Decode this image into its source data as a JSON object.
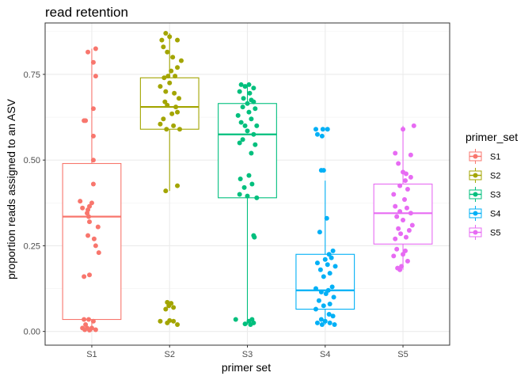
{
  "chart_data": {
    "type": "boxplot",
    "title": "read retention",
    "xlabel": "primer set",
    "ylabel": "proportion reads assigned to an ASV",
    "categories": [
      "S1",
      "S2",
      "S3",
      "S4",
      "S5"
    ],
    "ylim": [
      -0.04,
      0.9
    ],
    "yticks": [
      0.0,
      0.25,
      0.5,
      0.75
    ],
    "ytick_labels": [
      "0.00",
      "0.25",
      "0.50",
      "0.75"
    ],
    "grid": true,
    "legend": {
      "title": "primer_set",
      "position": "right",
      "entries": [
        "S1",
        "S2",
        "S3",
        "S4",
        "S5"
      ]
    },
    "colors": {
      "S1": "#f8766d",
      "S2": "#a3a500",
      "S3": "#00bf7d",
      "S4": "#00b0f6",
      "S5": "#e76bf3"
    },
    "boxes": [
      {
        "name": "S1",
        "q1": 0.035,
        "median": 0.335,
        "q3": 0.49,
        "whisker_low": 0.0,
        "whisker_high": 0.825
      },
      {
        "name": "S2",
        "q1": 0.59,
        "median": 0.655,
        "q3": 0.74,
        "whisker_low": 0.41,
        "whisker_high": 0.87
      },
      {
        "name": "S3",
        "q1": 0.39,
        "median": 0.575,
        "q3": 0.665,
        "whisker_low": 0.02,
        "whisker_high": 0.72
      },
      {
        "name": "S4",
        "q1": 0.065,
        "median": 0.12,
        "q3": 0.225,
        "whisker_low": 0.02,
        "whisker_high": 0.44
      },
      {
        "name": "S5",
        "q1": 0.255,
        "median": 0.345,
        "q3": 0.43,
        "whisker_low": 0.18,
        "whisker_high": 0.6
      }
    ],
    "points": [
      {
        "name": "S1",
        "values": [
          {
            "offset": 0.05,
            "y": 0.825
          },
          {
            "offset": -0.05,
            "y": 0.815
          },
          {
            "offset": 0.02,
            "y": 0.785
          },
          {
            "offset": 0.05,
            "y": 0.745
          },
          {
            "offset": 0.02,
            "y": 0.65
          },
          {
            "offset": -0.1,
            "y": 0.615
          },
          {
            "offset": -0.08,
            "y": 0.615
          },
          {
            "offset": 0.02,
            "y": 0.57
          },
          {
            "offset": 0.02,
            "y": 0.5
          },
          {
            "offset": 0.02,
            "y": 0.43
          },
          {
            "offset": -0.15,
            "y": 0.38
          },
          {
            "offset": 0.0,
            "y": 0.375
          },
          {
            "offset": -0.12,
            "y": 0.36
          },
          {
            "offset": -0.05,
            "y": 0.355
          },
          {
            "offset": -0.03,
            "y": 0.365
          },
          {
            "offset": -0.06,
            "y": 0.345
          },
          {
            "offset": -0.04,
            "y": 0.335
          },
          {
            "offset": -0.03,
            "y": 0.32
          },
          {
            "offset": 0.08,
            "y": 0.305
          },
          {
            "offset": -0.05,
            "y": 0.28
          },
          {
            "offset": 0.03,
            "y": 0.27
          },
          {
            "offset": 0.05,
            "y": 0.25
          },
          {
            "offset": 0.09,
            "y": 0.23
          },
          {
            "offset": -0.03,
            "y": 0.165
          },
          {
            "offset": -0.1,
            "y": 0.16
          },
          {
            "offset": -0.1,
            "y": 0.035
          },
          {
            "offset": -0.04,
            "y": 0.035
          },
          {
            "offset": 0.02,
            "y": 0.03
          },
          {
            "offset": -0.08,
            "y": 0.02
          },
          {
            "offset": -0.12,
            "y": 0.01
          },
          {
            "offset": -0.06,
            "y": 0.01
          },
          {
            "offset": 0.0,
            "y": 0.01
          },
          {
            "offset": 0.05,
            "y": 0.005
          },
          {
            "offset": -0.09,
            "y": 0.005
          },
          {
            "offset": -0.03,
            "y": 0.004
          }
        ]
      },
      {
        "name": "S2",
        "values": [
          {
            "offset": -0.05,
            "y": 0.87
          },
          {
            "offset": 0.0,
            "y": 0.86
          },
          {
            "offset": -0.1,
            "y": 0.85
          },
          {
            "offset": 0.1,
            "y": 0.85
          },
          {
            "offset": -0.08,
            "y": 0.83
          },
          {
            "offset": -0.03,
            "y": 0.815
          },
          {
            "offset": 0.04,
            "y": 0.8
          },
          {
            "offset": 0.15,
            "y": 0.79
          },
          {
            "offset": 0.1,
            "y": 0.77
          },
          {
            "offset": 0.02,
            "y": 0.76
          },
          {
            "offset": -0.02,
            "y": 0.745
          },
          {
            "offset": 0.07,
            "y": 0.745
          },
          {
            "offset": -0.07,
            "y": 0.74
          },
          {
            "offset": 0.0,
            "y": 0.725
          },
          {
            "offset": -0.12,
            "y": 0.715
          },
          {
            "offset": -0.05,
            "y": 0.7
          },
          {
            "offset": 0.06,
            "y": 0.695
          },
          {
            "offset": 0.12,
            "y": 0.68
          },
          {
            "offset": -0.06,
            "y": 0.67
          },
          {
            "offset": -0.03,
            "y": 0.66
          },
          {
            "offset": 0.08,
            "y": 0.655
          },
          {
            "offset": 0.1,
            "y": 0.64
          },
          {
            "offset": 0.03,
            "y": 0.635
          },
          {
            "offset": -0.08,
            "y": 0.62
          },
          {
            "offset": 0.05,
            "y": 0.6
          },
          {
            "offset": -0.12,
            "y": 0.605
          },
          {
            "offset": 0.13,
            "y": 0.59
          },
          {
            "offset": -0.04,
            "y": 0.59
          },
          {
            "offset": 0.1,
            "y": 0.425
          },
          {
            "offset": -0.05,
            "y": 0.41
          },
          {
            "offset": -0.03,
            "y": 0.085
          },
          {
            "offset": 0.02,
            "y": 0.082
          },
          {
            "offset": -0.01,
            "y": 0.075
          },
          {
            "offset": 0.05,
            "y": 0.07
          },
          {
            "offset": -0.05,
            "y": 0.065
          },
          {
            "offset": 0.0,
            "y": 0.032
          },
          {
            "offset": -0.12,
            "y": 0.03
          },
          {
            "offset": 0.05,
            "y": 0.03
          },
          {
            "offset": -0.03,
            "y": 0.025
          },
          {
            "offset": 0.1,
            "y": 0.02
          }
        ]
      },
      {
        "name": "S3",
        "values": [
          {
            "offset": -0.08,
            "y": 0.72
          },
          {
            "offset": -0.03,
            "y": 0.715
          },
          {
            "offset": 0.02,
            "y": 0.72
          },
          {
            "offset": 0.08,
            "y": 0.71
          },
          {
            "offset": -0.1,
            "y": 0.7
          },
          {
            "offset": 0.03,
            "y": 0.695
          },
          {
            "offset": -0.05,
            "y": 0.68
          },
          {
            "offset": 0.05,
            "y": 0.675
          },
          {
            "offset": 0.0,
            "y": 0.665
          },
          {
            "offset": 0.08,
            "y": 0.67
          },
          {
            "offset": -0.06,
            "y": 0.655
          },
          {
            "offset": 0.1,
            "y": 0.65
          },
          {
            "offset": 0.02,
            "y": 0.64
          },
          {
            "offset": -0.12,
            "y": 0.63
          },
          {
            "offset": 0.05,
            "y": 0.62
          },
          {
            "offset": -0.08,
            "y": 0.61
          },
          {
            "offset": 0.12,
            "y": 0.6
          },
          {
            "offset": -0.03,
            "y": 0.6
          },
          {
            "offset": 0.0,
            "y": 0.585
          },
          {
            "offset": 0.08,
            "y": 0.575
          },
          {
            "offset": -0.06,
            "y": 0.56
          },
          {
            "offset": 0.1,
            "y": 0.545
          },
          {
            "offset": -0.1,
            "y": 0.55
          },
          {
            "offset": 0.05,
            "y": 0.52
          },
          {
            "offset": 0.02,
            "y": 0.455
          },
          {
            "offset": -0.09,
            "y": 0.445
          },
          {
            "offset": 0.06,
            "y": 0.43
          },
          {
            "offset": -0.04,
            "y": 0.42
          },
          {
            "offset": -0.1,
            "y": 0.4
          },
          {
            "offset": 0.0,
            "y": 0.395
          },
          {
            "offset": 0.12,
            "y": 0.39
          },
          {
            "offset": 0.08,
            "y": 0.28
          },
          {
            "offset": 0.09,
            "y": 0.275
          },
          {
            "offset": -0.15,
            "y": 0.035
          },
          {
            "offset": 0.06,
            "y": 0.035
          },
          {
            "offset": 0.02,
            "y": 0.03
          },
          {
            "offset": 0.08,
            "y": 0.025
          },
          {
            "offset": -0.03,
            "y": 0.022
          },
          {
            "offset": 0.04,
            "y": 0.02
          }
        ]
      },
      {
        "name": "S4",
        "values": [
          {
            "offset": -0.12,
            "y": 0.59
          },
          {
            "offset": -0.03,
            "y": 0.59
          },
          {
            "offset": -0.1,
            "y": 0.575
          },
          {
            "offset": -0.04,
            "y": 0.57
          },
          {
            "offset": 0.03,
            "y": 0.59
          },
          {
            "offset": -0.05,
            "y": 0.47
          },
          {
            "offset": -0.02,
            "y": 0.47
          },
          {
            "offset": 0.02,
            "y": 0.33
          },
          {
            "offset": -0.07,
            "y": 0.29
          },
          {
            "offset": 0.1,
            "y": 0.235
          },
          {
            "offset": 0.05,
            "y": 0.225
          },
          {
            "offset": 0.08,
            "y": 0.215
          },
          {
            "offset": 0.0,
            "y": 0.21
          },
          {
            "offset": -0.1,
            "y": 0.2
          },
          {
            "offset": 0.03,
            "y": 0.195
          },
          {
            "offset": 0.13,
            "y": 0.19
          },
          {
            "offset": -0.06,
            "y": 0.18
          },
          {
            "offset": 0.06,
            "y": 0.17
          },
          {
            "offset": -0.02,
            "y": 0.16
          },
          {
            "offset": 0.09,
            "y": 0.13
          },
          {
            "offset": -0.12,
            "y": 0.125
          },
          {
            "offset": 0.04,
            "y": 0.12
          },
          {
            "offset": -0.05,
            "y": 0.115
          },
          {
            "offset": 0.01,
            "y": 0.11
          },
          {
            "offset": 0.11,
            "y": 0.1
          },
          {
            "offset": -0.08,
            "y": 0.09
          },
          {
            "offset": 0.06,
            "y": 0.08
          },
          {
            "offset": -0.02,
            "y": 0.075
          },
          {
            "offset": -0.12,
            "y": 0.065
          },
          {
            "offset": 0.05,
            "y": 0.05
          },
          {
            "offset": 0.1,
            "y": 0.045
          },
          {
            "offset": -0.05,
            "y": 0.035
          },
          {
            "offset": 0.0,
            "y": 0.03
          },
          {
            "offset": -0.1,
            "y": 0.025
          },
          {
            "offset": 0.06,
            "y": 0.025
          },
          {
            "offset": -0.04,
            "y": 0.02
          },
          {
            "offset": 0.12,
            "y": 0.02
          }
        ]
      },
      {
        "name": "S5",
        "values": [
          {
            "offset": 0.14,
            "y": 0.6
          },
          {
            "offset": 0.0,
            "y": 0.59
          },
          {
            "offset": -0.1,
            "y": 0.52
          },
          {
            "offset": 0.1,
            "y": 0.515
          },
          {
            "offset": -0.06,
            "y": 0.49
          },
          {
            "offset": 0.0,
            "y": 0.465
          },
          {
            "offset": 0.04,
            "y": 0.46
          },
          {
            "offset": 0.1,
            "y": 0.45
          },
          {
            "offset": 0.03,
            "y": 0.44
          },
          {
            "offset": -0.04,
            "y": 0.425
          },
          {
            "offset": 0.06,
            "y": 0.415
          },
          {
            "offset": -0.12,
            "y": 0.4
          },
          {
            "offset": 0.02,
            "y": 0.385
          },
          {
            "offset": -0.1,
            "y": 0.365
          },
          {
            "offset": 0.05,
            "y": 0.36
          },
          {
            "offset": -0.04,
            "y": 0.35
          },
          {
            "offset": 0.1,
            "y": 0.345
          },
          {
            "offset": -0.08,
            "y": 0.335
          },
          {
            "offset": 0.0,
            "y": 0.325
          },
          {
            "offset": 0.12,
            "y": 0.31
          },
          {
            "offset": -0.06,
            "y": 0.3
          },
          {
            "offset": 0.08,
            "y": 0.295
          },
          {
            "offset": -0.03,
            "y": 0.285
          },
          {
            "offset": 0.04,
            "y": 0.275
          },
          {
            "offset": -0.1,
            "y": 0.27
          },
          {
            "offset": -0.08,
            "y": 0.24
          },
          {
            "offset": 0.03,
            "y": 0.235
          },
          {
            "offset": 0.0,
            "y": 0.225
          },
          {
            "offset": -0.12,
            "y": 0.22
          },
          {
            "offset": 0.06,
            "y": 0.205
          },
          {
            "offset": -0.02,
            "y": 0.19
          },
          {
            "offset": -0.07,
            "y": 0.185
          },
          {
            "offset": -0.04,
            "y": 0.18
          }
        ]
      }
    ]
  }
}
